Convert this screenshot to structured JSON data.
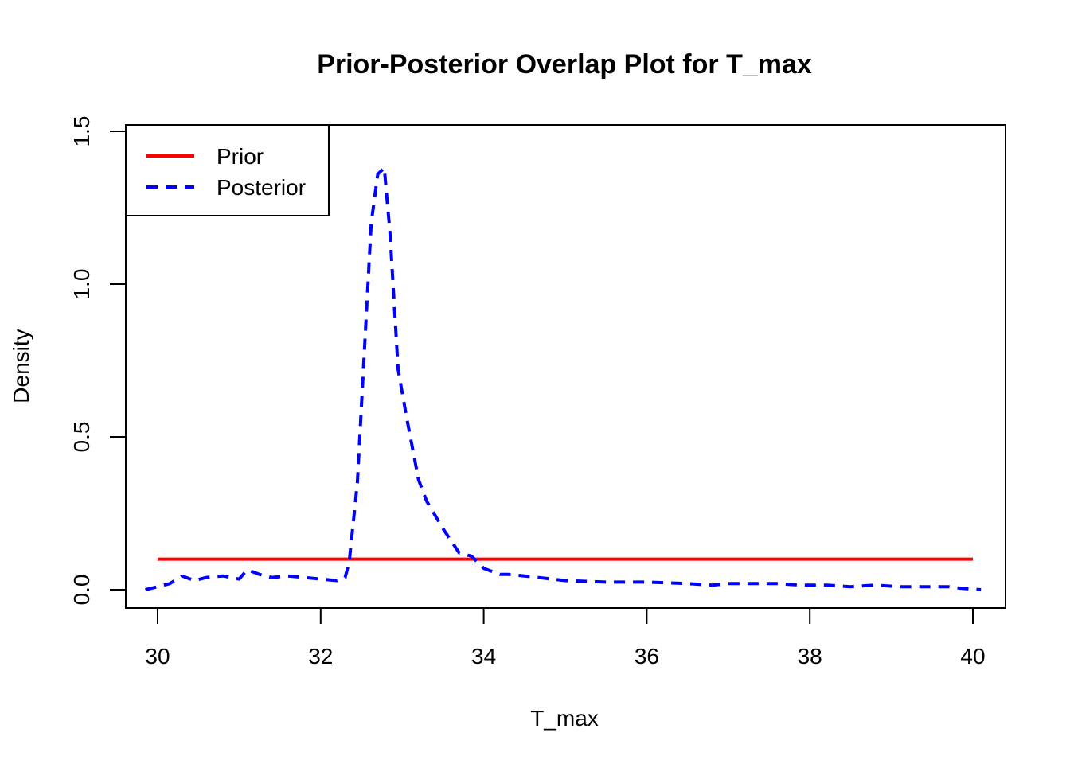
{
  "chart_data": {
    "type": "line",
    "title": "Prior-Posterior Overlap Plot for T_max",
    "xlabel": "T_max",
    "ylabel": "Density",
    "xlim": [
      29.8,
      40.2
    ],
    "ylim": [
      -0.05,
      1.5
    ],
    "x_ticks": [
      30,
      32,
      34,
      36,
      38,
      40
    ],
    "x_tick_labels": [
      "30",
      "32",
      "34",
      "36",
      "38",
      "40"
    ],
    "y_ticks": [
      0.0,
      0.5,
      1.0,
      1.5
    ],
    "y_tick_labels": [
      "0.0",
      "0.5",
      "1.0",
      "1.5"
    ],
    "grid": false,
    "legend": {
      "position": "top-left",
      "entries": [
        {
          "label": "Prior",
          "color": "#ff0000",
          "style": "solid"
        },
        {
          "label": "Posterior",
          "color": "#0000ff",
          "style": "dashed"
        }
      ]
    },
    "series": [
      {
        "name": "Prior",
        "color": "#ff0000",
        "style": "solid",
        "x": [
          30.0,
          40.0
        ],
        "y": [
          0.1,
          0.1
        ]
      },
      {
        "name": "Posterior",
        "color": "#0000ff",
        "style": "dashed",
        "x": [
          29.85,
          30.0,
          30.15,
          30.3,
          30.45,
          30.6,
          30.8,
          31.0,
          31.1,
          31.25,
          31.4,
          31.6,
          31.8,
          32.0,
          32.2,
          32.3,
          32.35,
          32.45,
          32.55,
          32.62,
          32.7,
          32.78,
          32.85,
          32.95,
          33.05,
          33.2,
          33.3,
          33.5,
          33.7,
          33.85,
          34.0,
          34.2,
          34.3,
          34.5,
          35.0,
          35.5,
          36.0,
          36.5,
          36.8,
          37.0,
          37.3,
          37.6,
          37.9,
          38.2,
          38.5,
          38.8,
          39.1,
          39.4,
          39.7,
          39.85,
          40.1
        ],
        "y": [
          0.0,
          0.01,
          0.02,
          0.045,
          0.03,
          0.04,
          0.045,
          0.035,
          0.065,
          0.05,
          0.04,
          0.045,
          0.04,
          0.035,
          0.03,
          0.04,
          0.09,
          0.35,
          0.85,
          1.2,
          1.36,
          1.38,
          1.17,
          0.72,
          0.57,
          0.36,
          0.29,
          0.2,
          0.12,
          0.11,
          0.07,
          0.05,
          0.05,
          0.045,
          0.03,
          0.025,
          0.025,
          0.02,
          0.015,
          0.02,
          0.02,
          0.02,
          0.015,
          0.015,
          0.01,
          0.015,
          0.01,
          0.01,
          0.01,
          0.005,
          0.0
        ]
      }
    ]
  }
}
